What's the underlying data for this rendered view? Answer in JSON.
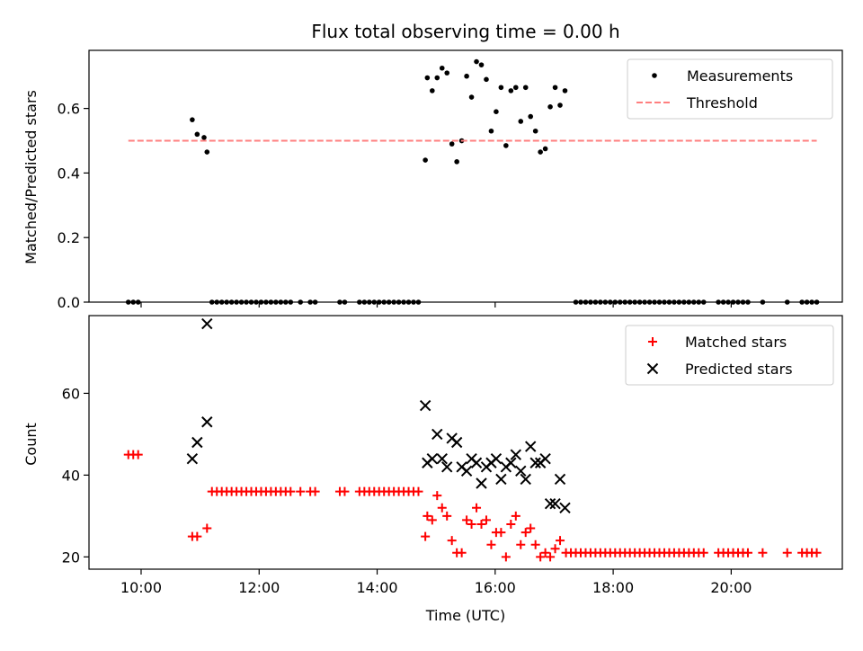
{
  "chart_data": [
    {
      "type": "scatter",
      "title": "Flux total observing time = 0.00 h",
      "xlabel": "",
      "ylabel": "Matched/Predicted stars",
      "xlim": [
        "09:07",
        "21:53"
      ],
      "ylim": [
        0,
        0.78
      ],
      "yticks": [
        0.0,
        0.2,
        0.4,
        0.6
      ],
      "ytick_labels": [
        "0.0",
        "0.2",
        "0.4",
        "0.6"
      ],
      "xticks": [
        "10:00",
        "12:00",
        "14:00",
        "16:00",
        "18:00",
        "20:00"
      ],
      "show_xtick_labels": false,
      "grid": false,
      "legend": "top-right",
      "series": [
        {
          "name": "Measurements",
          "marker": "dot",
          "color": "#000000",
          "points": [
            [
              "09:47",
              0
            ],
            [
              "09:52",
              0
            ],
            [
              "09:57",
              0
            ],
            [
              "10:52",
              0.565
            ],
            [
              "10:57",
              0.52
            ],
            [
              "11:04",
              0.51
            ],
            [
              "11:07",
              0.465
            ],
            [
              "11:12",
              0
            ],
            [
              "11:17",
              0
            ],
            [
              "11:22",
              0
            ],
            [
              "11:27",
              0
            ],
            [
              "11:32",
              0
            ],
            [
              "11:37",
              0
            ],
            [
              "11:42",
              0
            ],
            [
              "11:47",
              0
            ],
            [
              "11:52",
              0
            ],
            [
              "11:57",
              0
            ],
            [
              "12:02",
              0
            ],
            [
              "12:07",
              0
            ],
            [
              "12:12",
              0
            ],
            [
              "12:17",
              0
            ],
            [
              "12:22",
              0
            ],
            [
              "12:27",
              0
            ],
            [
              "12:32",
              0
            ],
            [
              "12:42",
              0
            ],
            [
              "12:52",
              0
            ],
            [
              "12:57",
              0
            ],
            [
              "13:22",
              0
            ],
            [
              "13:27",
              0
            ],
            [
              "13:42",
              0
            ],
            [
              "13:47",
              0
            ],
            [
              "13:52",
              0
            ],
            [
              "13:57",
              0
            ],
            [
              "14:02",
              0
            ],
            [
              "14:07",
              0
            ],
            [
              "14:12",
              0
            ],
            [
              "14:17",
              0
            ],
            [
              "14:22",
              0
            ],
            [
              "14:27",
              0
            ],
            [
              "14:32",
              0
            ],
            [
              "14:37",
              0
            ],
            [
              "14:42",
              0
            ],
            [
              "14:49",
              0.44
            ],
            [
              "14:51",
              0.695
            ],
            [
              "14:56",
              0.655
            ],
            [
              "15:01",
              0.695
            ],
            [
              "15:06",
              0.725
            ],
            [
              "15:11",
              0.71
            ],
            [
              "15:16",
              0.49
            ],
            [
              "15:21",
              0.435
            ],
            [
              "15:26",
              0.5
            ],
            [
              "15:31",
              0.7
            ],
            [
              "15:36",
              0.635
            ],
            [
              "15:41",
              0.745
            ],
            [
              "15:46",
              0.735
            ],
            [
              "15:51",
              0.69
            ],
            [
              "15:56",
              0.53
            ],
            [
              "16:01",
              0.59
            ],
            [
              "16:06",
              0.665
            ],
            [
              "16:11",
              0.485
            ],
            [
              "16:16",
              0.655
            ],
            [
              "16:21",
              0.665
            ],
            [
              "16:26",
              0.56
            ],
            [
              "16:31",
              0.665
            ],
            [
              "16:36",
              0.575
            ],
            [
              "16:41",
              0.53
            ],
            [
              "16:46",
              0.465
            ],
            [
              "16:51",
              0.475
            ],
            [
              "16:56",
              0.605
            ],
            [
              "17:01",
              0.665
            ],
            [
              "17:06",
              0.61
            ],
            [
              "17:11",
              0.655
            ],
            [
              "17:22",
              0
            ],
            [
              "17:27",
              0
            ],
            [
              "17:32",
              0
            ],
            [
              "17:37",
              0
            ],
            [
              "17:42",
              0
            ],
            [
              "17:47",
              0
            ],
            [
              "17:52",
              0
            ],
            [
              "17:57",
              0
            ],
            [
              "18:02",
              0
            ],
            [
              "18:07",
              0
            ],
            [
              "18:12",
              0
            ],
            [
              "18:17",
              0
            ],
            [
              "18:22",
              0
            ],
            [
              "18:27",
              0
            ],
            [
              "18:32",
              0
            ],
            [
              "18:37",
              0
            ],
            [
              "18:42",
              0
            ],
            [
              "18:47",
              0
            ],
            [
              "18:52",
              0
            ],
            [
              "18:57",
              0
            ],
            [
              "19:02",
              0
            ],
            [
              "19:07",
              0
            ],
            [
              "19:12",
              0
            ],
            [
              "19:17",
              0
            ],
            [
              "19:22",
              0
            ],
            [
              "19:27",
              0
            ],
            [
              "19:32",
              0
            ],
            [
              "19:47",
              0
            ],
            [
              "19:52",
              0
            ],
            [
              "19:57",
              0
            ],
            [
              "20:02",
              0
            ],
            [
              "20:07",
              0
            ],
            [
              "20:12",
              0
            ],
            [
              "20:17",
              0
            ],
            [
              "20:32",
              0
            ],
            [
              "20:57",
              0
            ],
            [
              "21:12",
              0
            ],
            [
              "21:17",
              0
            ],
            [
              "21:22",
              0
            ],
            [
              "21:27",
              0
            ]
          ]
        },
        {
          "name": "Threshold",
          "line": "dashed",
          "color": "#ff7f7f",
          "points": [
            [
              "09:47",
              0.5
            ],
            [
              "21:27",
              0.5
            ]
          ]
        }
      ]
    },
    {
      "type": "scatter",
      "title": "",
      "xlabel": "Time (UTC)",
      "ylabel": "Count",
      "xlim": [
        "09:07",
        "21:53"
      ],
      "ylim": [
        17,
        79
      ],
      "yticks": [
        20,
        40,
        60
      ],
      "ytick_labels": [
        "20",
        "40",
        "60"
      ],
      "xticks": [
        "10:00",
        "12:00",
        "14:00",
        "16:00",
        "18:00",
        "20:00"
      ],
      "xtick_labels": [
        "10:00",
        "12:00",
        "14:00",
        "16:00",
        "18:00",
        "20:00"
      ],
      "grid": false,
      "legend": "top-right",
      "series": [
        {
          "name": "Matched stars",
          "marker": "plus",
          "color": "#ff0000",
          "points": [
            [
              "09:47",
              45
            ],
            [
              "09:52",
              45
            ],
            [
              "09:57",
              45
            ],
            [
              "10:52",
              25
            ],
            [
              "10:57",
              25
            ],
            [
              "11:07",
              27
            ],
            [
              "11:12",
              36
            ],
            [
              "11:17",
              36
            ],
            [
              "11:22",
              36
            ],
            [
              "11:27",
              36
            ],
            [
              "11:32",
              36
            ],
            [
              "11:37",
              36
            ],
            [
              "11:42",
              36
            ],
            [
              "11:47",
              36
            ],
            [
              "11:52",
              36
            ],
            [
              "11:57",
              36
            ],
            [
              "12:02",
              36
            ],
            [
              "12:07",
              36
            ],
            [
              "12:12",
              36
            ],
            [
              "12:17",
              36
            ],
            [
              "12:22",
              36
            ],
            [
              "12:27",
              36
            ],
            [
              "12:32",
              36
            ],
            [
              "12:42",
              36
            ],
            [
              "12:52",
              36
            ],
            [
              "12:57",
              36
            ],
            [
              "13:22",
              36
            ],
            [
              "13:27",
              36
            ],
            [
              "13:42",
              36
            ],
            [
              "13:47",
              36
            ],
            [
              "13:52",
              36
            ],
            [
              "13:57",
              36
            ],
            [
              "14:02",
              36
            ],
            [
              "14:07",
              36
            ],
            [
              "14:12",
              36
            ],
            [
              "14:17",
              36
            ],
            [
              "14:22",
              36
            ],
            [
              "14:27",
              36
            ],
            [
              "14:32",
              36
            ],
            [
              "14:37",
              36
            ],
            [
              "14:42",
              36
            ],
            [
              "14:49",
              25
            ],
            [
              "14:51",
              30
            ],
            [
              "14:56",
              29
            ],
            [
              "15:01",
              35
            ],
            [
              "15:06",
              32
            ],
            [
              "15:11",
              30
            ],
            [
              "15:16",
              24
            ],
            [
              "15:21",
              21
            ],
            [
              "15:26",
              21
            ],
            [
              "15:31",
              29
            ],
            [
              "15:36",
              28
            ],
            [
              "15:41",
              32
            ],
            [
              "15:46",
              28
            ],
            [
              "15:51",
              29
            ],
            [
              "15:56",
              23
            ],
            [
              "16:01",
              26
            ],
            [
              "16:06",
              26
            ],
            [
              "16:11",
              20
            ],
            [
              "16:16",
              28
            ],
            [
              "16:21",
              30
            ],
            [
              "16:26",
              23
            ],
            [
              "16:31",
              26
            ],
            [
              "16:36",
              27
            ],
            [
              "16:41",
              23
            ],
            [
              "16:46",
              20
            ],
            [
              "16:51",
              21
            ],
            [
              "16:56",
              20
            ],
            [
              "17:01",
              22
            ],
            [
              "17:06",
              24
            ],
            [
              "17:12",
              21
            ],
            [
              "17:17",
              21
            ],
            [
              "17:22",
              21
            ],
            [
              "17:27",
              21
            ],
            [
              "17:32",
              21
            ],
            [
              "17:37",
              21
            ],
            [
              "17:42",
              21
            ],
            [
              "17:47",
              21
            ],
            [
              "17:52",
              21
            ],
            [
              "17:57",
              21
            ],
            [
              "18:02",
              21
            ],
            [
              "18:07",
              21
            ],
            [
              "18:12",
              21
            ],
            [
              "18:17",
              21
            ],
            [
              "18:22",
              21
            ],
            [
              "18:27",
              21
            ],
            [
              "18:32",
              21
            ],
            [
              "18:37",
              21
            ],
            [
              "18:42",
              21
            ],
            [
              "18:47",
              21
            ],
            [
              "18:52",
              21
            ],
            [
              "18:57",
              21
            ],
            [
              "19:02",
              21
            ],
            [
              "19:07",
              21
            ],
            [
              "19:12",
              21
            ],
            [
              "19:17",
              21
            ],
            [
              "19:22",
              21
            ],
            [
              "19:27",
              21
            ],
            [
              "19:32",
              21
            ],
            [
              "19:47",
              21
            ],
            [
              "19:52",
              21
            ],
            [
              "19:57",
              21
            ],
            [
              "20:02",
              21
            ],
            [
              "20:07",
              21
            ],
            [
              "20:12",
              21
            ],
            [
              "20:17",
              21
            ],
            [
              "20:32",
              21
            ],
            [
              "20:57",
              21
            ],
            [
              "21:12",
              21
            ],
            [
              "21:17",
              21
            ],
            [
              "21:22",
              21
            ],
            [
              "21:27",
              21
            ]
          ]
        },
        {
          "name": "Predicted stars",
          "marker": "x",
          "color": "#000000",
          "points": [
            [
              "10:52",
              44
            ],
            [
              "10:57",
              48
            ],
            [
              "11:07",
              53
            ],
            [
              "11:07",
              77
            ],
            [
              "14:49",
              57
            ],
            [
              "14:51",
              43
            ],
            [
              "14:56",
              44
            ],
            [
              "15:01",
              50
            ],
            [
              "15:06",
              44
            ],
            [
              "15:11",
              42
            ],
            [
              "15:16",
              49
            ],
            [
              "15:21",
              48
            ],
            [
              "15:26",
              42
            ],
            [
              "15:31",
              41
            ],
            [
              "15:36",
              44
            ],
            [
              "15:41",
              43
            ],
            [
              "15:46",
              38
            ],
            [
              "15:51",
              42
            ],
            [
              "15:56",
              43
            ],
            [
              "16:01",
              44
            ],
            [
              "16:06",
              39
            ],
            [
              "16:11",
              42
            ],
            [
              "16:16",
              43
            ],
            [
              "16:21",
              45
            ],
            [
              "16:26",
              41
            ],
            [
              "16:31",
              39
            ],
            [
              "16:36",
              47
            ],
            [
              "16:41",
              43
            ],
            [
              "16:46",
              43
            ],
            [
              "16:51",
              44
            ],
            [
              "16:56",
              33
            ],
            [
              "17:01",
              33
            ],
            [
              "17:06",
              39
            ],
            [
              "17:11",
              32
            ]
          ]
        }
      ]
    }
  ]
}
